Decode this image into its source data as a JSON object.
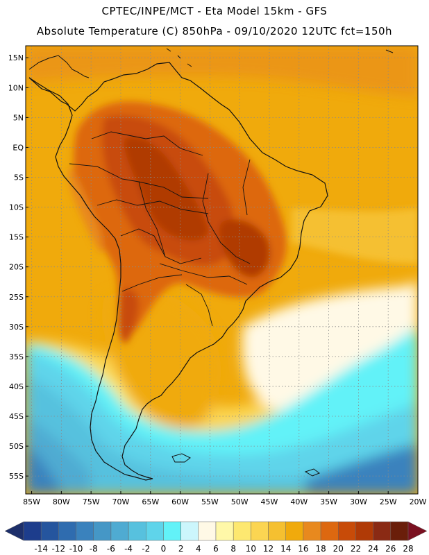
{
  "header": {
    "line1": "CPTEC/INPE/MCT -  Eta Model 15km - GFS",
    "line2": "Absolute Temperature (C) 850hPa - 09/10/2020 12UTC fct=150h"
  },
  "map": {
    "lat_labels": [
      "15N",
      "10N",
      "5N",
      "EQ",
      "5S",
      "10S",
      "15S",
      "20S",
      "25S",
      "30S",
      "35S",
      "40S",
      "45S",
      "50S",
      "55S"
    ],
    "lat_values": [
      15,
      10,
      5,
      0,
      -5,
      -10,
      -15,
      -20,
      -25,
      -30,
      -35,
      -40,
      -45,
      -50,
      -55
    ],
    "lon_labels": [
      "85W",
      "80W",
      "75W",
      "70W",
      "65W",
      "60W",
      "55W",
      "50W",
      "45W",
      "40W",
      "35W",
      "30W",
      "25W",
      "20W"
    ],
    "lon_values": [
      -85,
      -80,
      -75,
      -70,
      -65,
      -60,
      -55,
      -50,
      -45,
      -40,
      -35,
      -30,
      -25,
      -20
    ],
    "lat_range": [
      -58,
      17
    ],
    "lon_range": [
      -86,
      -20
    ]
  },
  "colorbar": {
    "labels": [
      "-14",
      "-12",
      "-10",
      "-8",
      "-6",
      "-4",
      "-2",
      "0",
      "2",
      "4",
      "6",
      "8",
      "10",
      "12",
      "14",
      "16",
      "18",
      "20",
      "22",
      "24",
      "26",
      "28"
    ],
    "colors": [
      "#1d3d8c",
      "#25559e",
      "#2f6caf",
      "#3a82bd",
      "#4597c6",
      "#4fabd2",
      "#57c1de",
      "#5fd4ea",
      "#62f2f8",
      "#ccf6fc",
      "#fff9e6",
      "#fff8a8",
      "#fde870",
      "#fbd552",
      "#f5c030",
      "#f0aa0c",
      "#e8891e",
      "#dd6810",
      "#c84b08",
      "#b03a06",
      "#8a2a14",
      "#6a1e0a"
    ],
    "under_color": "#1d2f6a",
    "over_color": "#7a1020"
  }
}
